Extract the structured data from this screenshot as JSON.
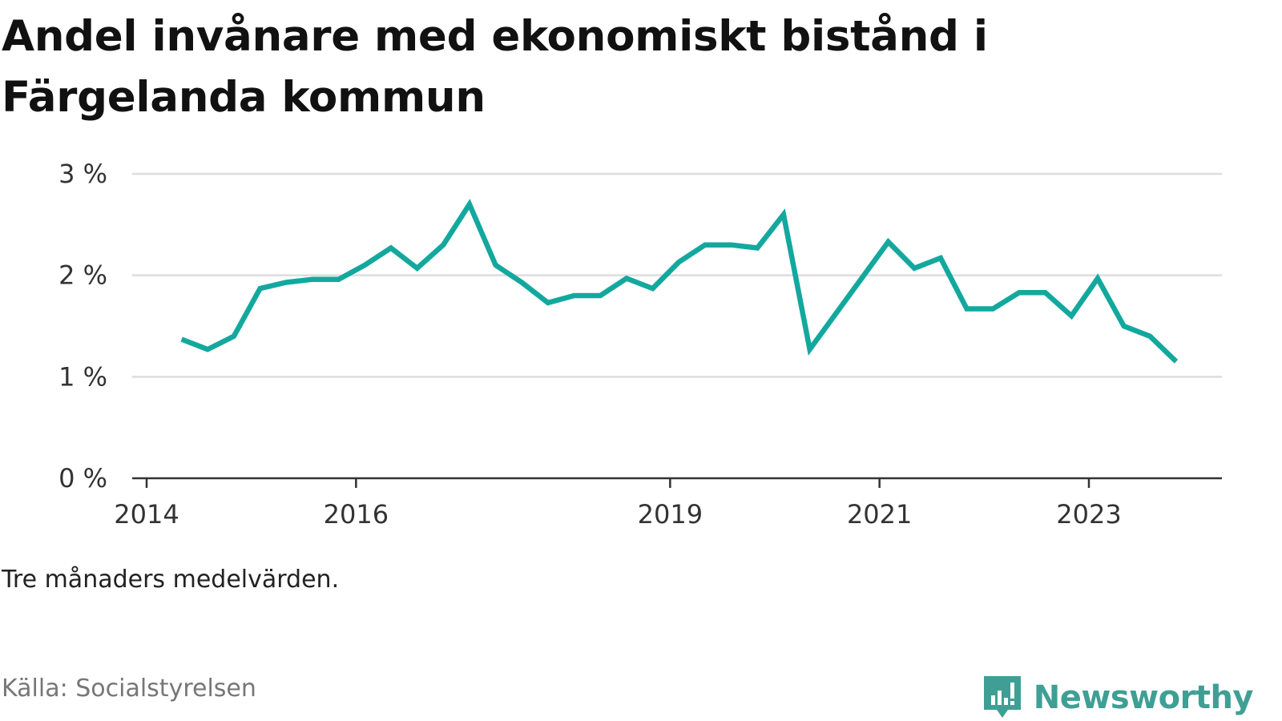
{
  "title": "Andel invånare med ekonomiskt bistånd i Färgelanda kommun",
  "note": "Tre månaders medelvärden.",
  "source": "Källa: Socialstyrelsen",
  "brand": {
    "name": "Newsworthy",
    "icon": "newsworthy-logo-icon",
    "color": "#3f9f95"
  },
  "colors": {
    "line": "#13a89e",
    "grid": "#dddddd",
    "axis": "#333333"
  },
  "chart_data": {
    "type": "line",
    "title": "Andel invånare med ekonomiskt bistånd i Färgelanda kommun",
    "xlabel": "",
    "ylabel": "",
    "x_ticks": [
      "2014",
      "2016",
      "2019",
      "2021",
      "2023"
    ],
    "y_ticks": [
      "0 %",
      "1 %",
      "2 %",
      "3 %"
    ],
    "ylim": [
      0,
      3
    ],
    "grid": true,
    "legend": "none",
    "series": [
      {
        "values": [
          {
            "x": "2014-05",
            "y": 1.37
          },
          {
            "x": "2014-08",
            "y": 1.27
          },
          {
            "x": "2014-11",
            "y": 1.4
          },
          {
            "x": "2015-02",
            "y": 1.87
          },
          {
            "x": "2015-05",
            "y": 1.93
          },
          {
            "x": "2015-08",
            "y": 1.96
          },
          {
            "x": "2015-11",
            "y": 1.96
          },
          {
            "x": "2016-02",
            "y": 2.1
          },
          {
            "x": "2016-05",
            "y": 2.27
          },
          {
            "x": "2016-08",
            "y": 2.07
          },
          {
            "x": "2016-11",
            "y": 2.3
          },
          {
            "x": "2017-02",
            "y": 2.7
          },
          {
            "x": "2017-05",
            "y": 2.1
          },
          {
            "x": "2017-08",
            "y": 1.93
          },
          {
            "x": "2017-11",
            "y": 1.73
          },
          {
            "x": "2018-02",
            "y": 1.8
          },
          {
            "x": "2018-05",
            "y": 1.8
          },
          {
            "x": "2018-08",
            "y": 1.97
          },
          {
            "x": "2018-11",
            "y": 1.87
          },
          {
            "x": "2019-02",
            "y": 2.13
          },
          {
            "x": "2019-05",
            "y": 2.3
          },
          {
            "x": "2019-08",
            "y": 2.3
          },
          {
            "x": "2019-11",
            "y": 2.27
          },
          {
            "x": "2020-02",
            "y": 2.6
          },
          {
            "x": "2020-05",
            "y": 1.27
          },
          {
            "x": "2021-02",
            "y": 2.33
          },
          {
            "x": "2021-05",
            "y": 2.07
          },
          {
            "x": "2021-08",
            "y": 2.17
          },
          {
            "x": "2021-11",
            "y": 1.67
          },
          {
            "x": "2022-02",
            "y": 1.67
          },
          {
            "x": "2022-05",
            "y": 1.83
          },
          {
            "x": "2022-08",
            "y": 1.83
          },
          {
            "x": "2022-11",
            "y": 1.6
          },
          {
            "x": "2023-02",
            "y": 1.97
          },
          {
            "x": "2023-05",
            "y": 1.5
          },
          {
            "x": "2023-08",
            "y": 1.4
          },
          {
            "x": "2023-11",
            "y": 1.15
          }
        ]
      }
    ]
  }
}
